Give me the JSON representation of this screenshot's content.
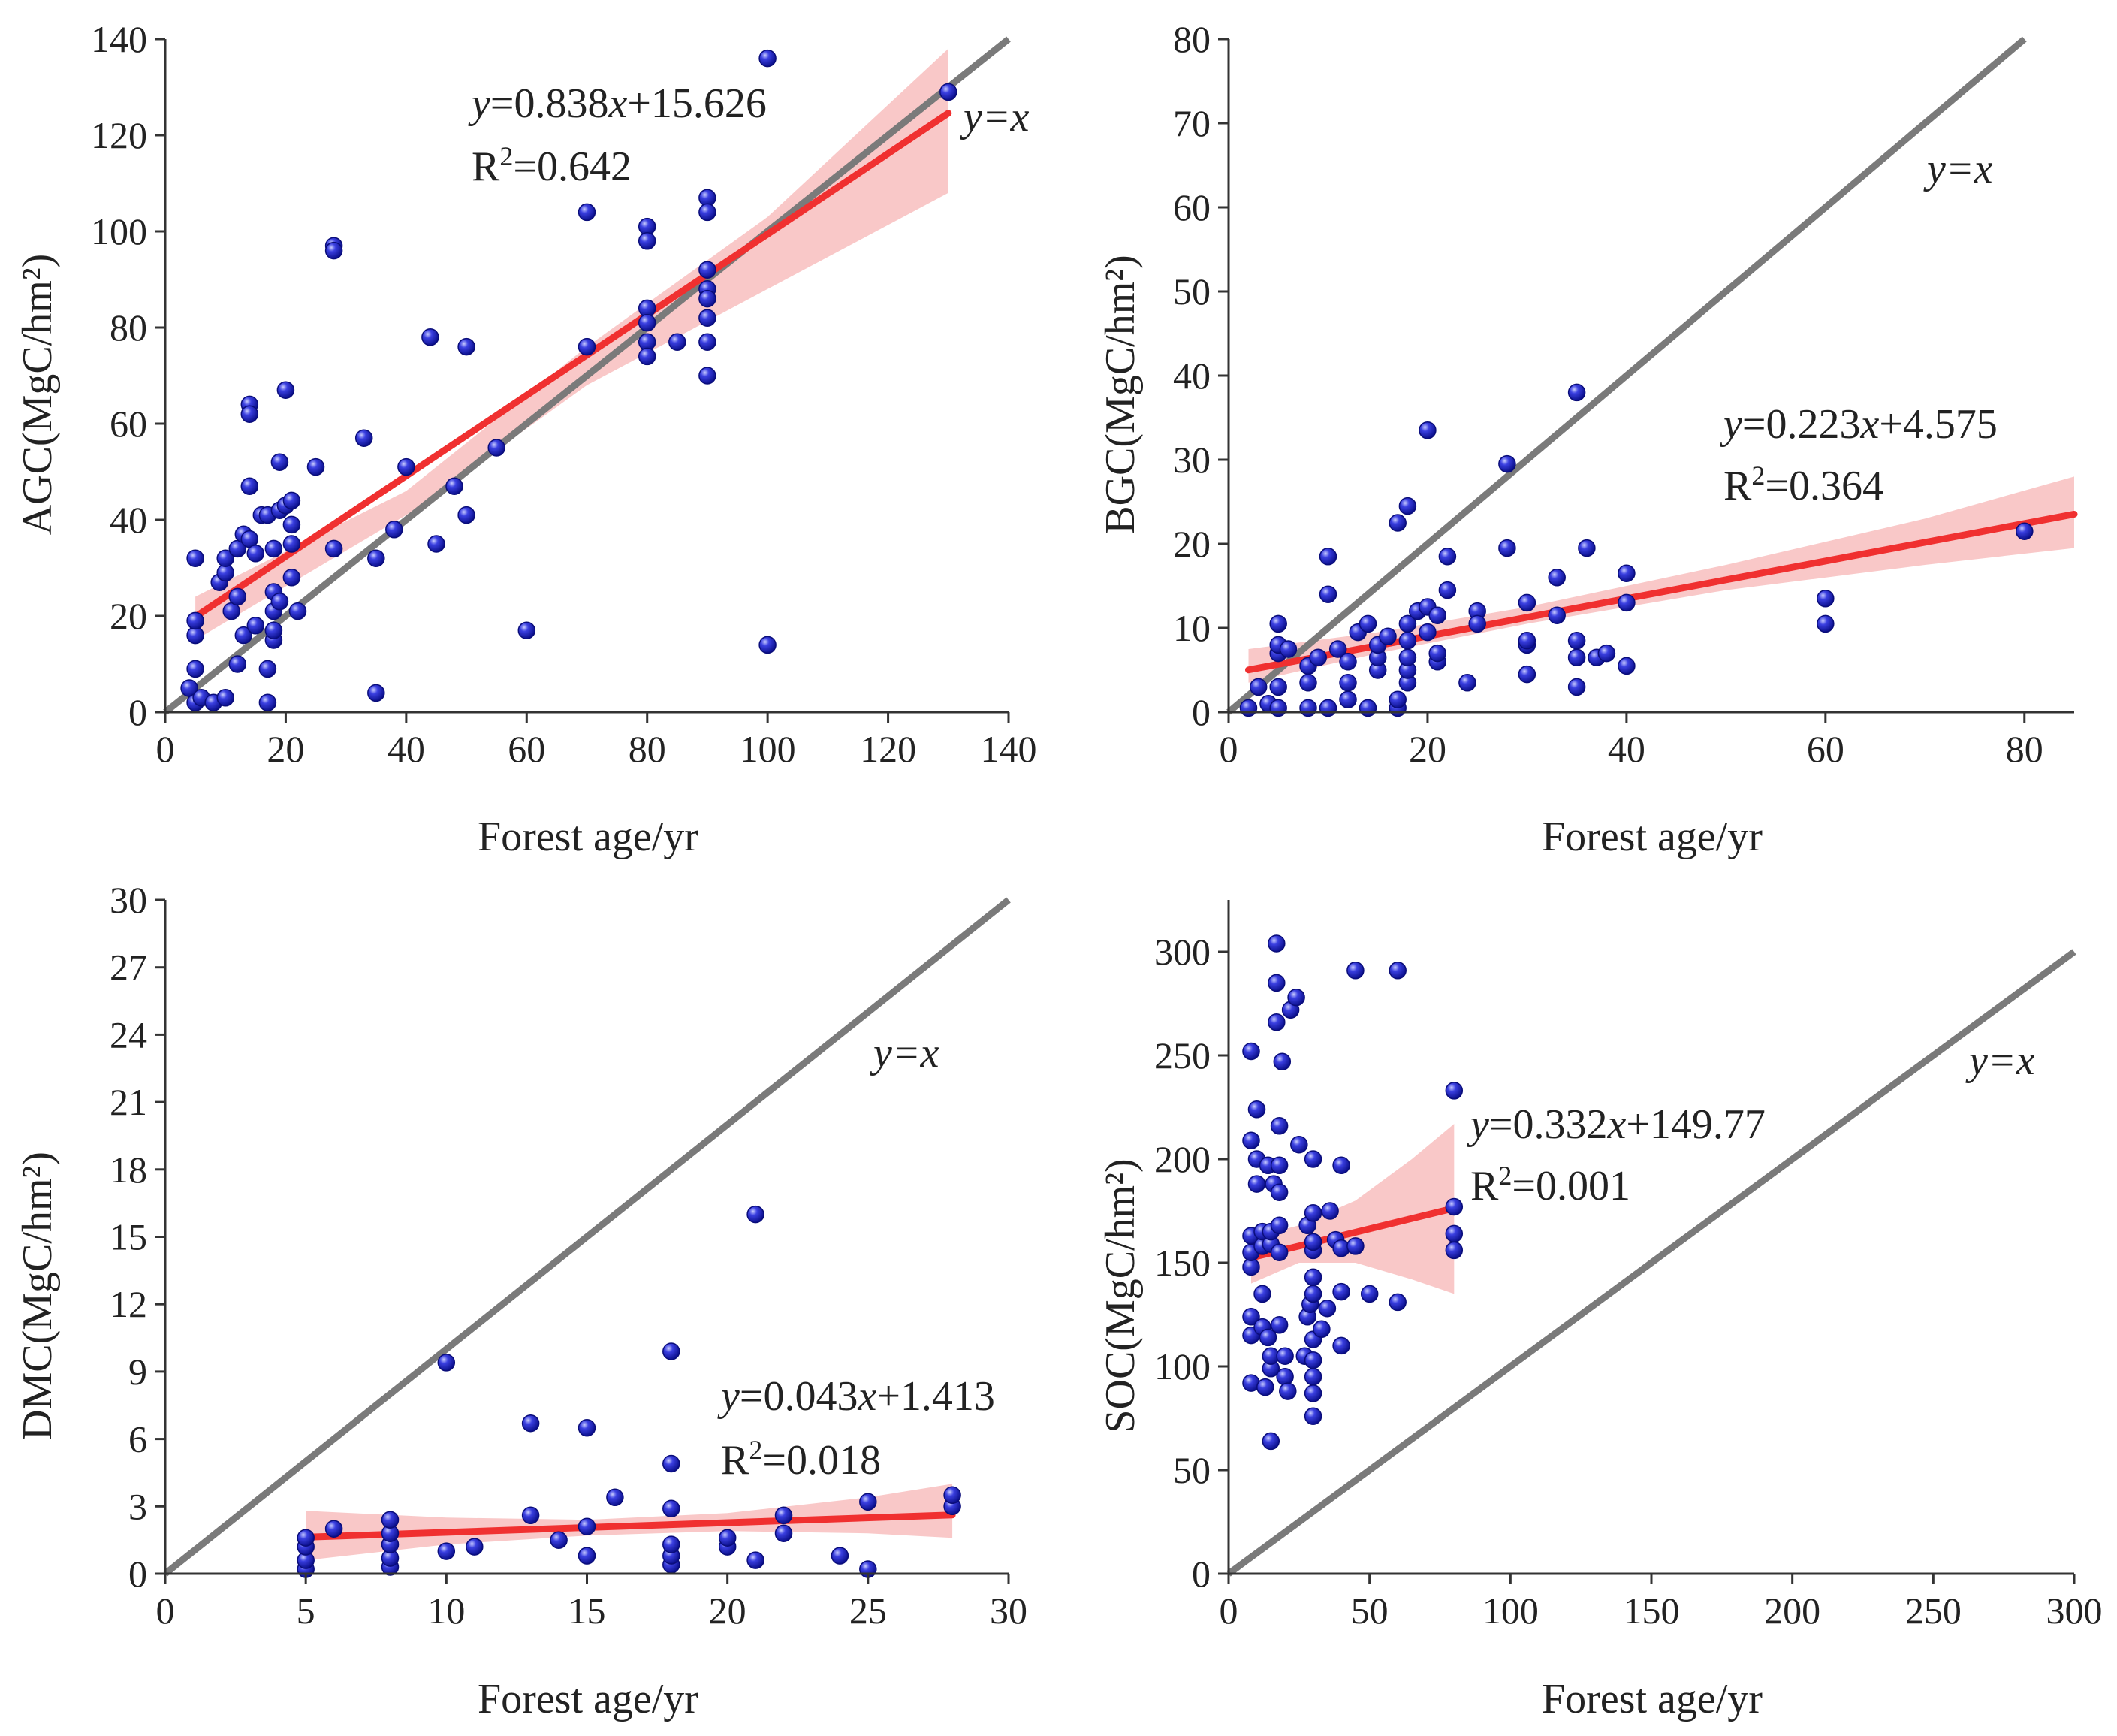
{
  "colors": {
    "point": "#1a1fc4",
    "point_edge": "#0a0d7a",
    "fit_line": "#f03030",
    "band": "#f7b5b5",
    "identity_line": "#7a7a7a",
    "axis": "#333333"
  },
  "chart_data": [
    {
      "id": "agc",
      "type": "scatter",
      "ylabel": "AGC(MgC/hm²)",
      "xlabel": "Forest age/yr",
      "xlim": [
        0,
        140
      ],
      "ylim": [
        0,
        140
      ],
      "xticks": [
        0,
        20,
        40,
        60,
        80,
        100,
        120,
        140
      ],
      "yticks": [
        0,
        20,
        40,
        60,
        80,
        100,
        120,
        140
      ],
      "identity_label": "y=x",
      "identity_range": [
        0,
        140
      ],
      "equation": "y=0.838x+15.626",
      "r2": "R²=0.642",
      "fit": {
        "slope": 0.838,
        "intercept": 15.626,
        "x_range": [
          5,
          130
        ]
      },
      "band": {
        "x": [
          5,
          40,
          70,
          100,
          130
        ],
        "lower": [
          15,
          41,
          68,
          88,
          108
        ],
        "upper": [
          24,
          46,
          76,
          103,
          138
        ]
      },
      "points": [
        [
          4,
          5
        ],
        [
          5,
          2
        ],
        [
          5,
          9
        ],
        [
          5,
          16
        ],
        [
          5,
          19
        ],
        [
          5,
          32
        ],
        [
          6,
          3
        ],
        [
          8,
          2
        ],
        [
          9,
          27
        ],
        [
          10,
          3
        ],
        [
          10,
          29
        ],
        [
          10,
          32
        ],
        [
          11,
          21
        ],
        [
          12,
          10
        ],
        [
          12,
          24
        ],
        [
          12,
          34
        ],
        [
          13,
          37
        ],
        [
          13,
          16
        ],
        [
          14,
          64
        ],
        [
          14,
          62
        ],
        [
          14,
          47
        ],
        [
          14,
          36
        ],
        [
          15,
          18
        ],
        [
          15,
          33
        ],
        [
          16,
          41
        ],
        [
          17,
          41
        ],
        [
          17,
          2
        ],
        [
          17,
          9
        ],
        [
          18,
          15
        ],
        [
          18,
          17
        ],
        [
          18,
          21
        ],
        [
          18,
          25
        ],
        [
          18,
          34
        ],
        [
          19,
          23
        ],
        [
          19,
          52
        ],
        [
          19,
          42
        ],
        [
          20,
          43
        ],
        [
          20,
          67
        ],
        [
          21,
          44
        ],
        [
          21,
          39
        ],
        [
          21,
          35
        ],
        [
          21,
          28
        ],
        [
          22,
          21
        ],
        [
          25,
          51
        ],
        [
          28,
          97
        ],
        [
          28,
          96
        ],
        [
          28,
          34
        ],
        [
          33,
          57
        ],
        [
          35,
          4
        ],
        [
          35,
          32
        ],
        [
          38,
          38
        ],
        [
          40,
          51
        ],
        [
          44,
          78
        ],
        [
          45,
          35
        ],
        [
          48,
          47
        ],
        [
          50,
          76
        ],
        [
          50,
          41
        ],
        [
          55,
          55
        ],
        [
          60,
          17
        ],
        [
          70,
          104
        ],
        [
          70,
          76
        ],
        [
          80,
          101
        ],
        [
          80,
          98
        ],
        [
          80,
          84
        ],
        [
          80,
          81
        ],
        [
          80,
          77
        ],
        [
          80,
          74
        ],
        [
          85,
          77
        ],
        [
          90,
          107
        ],
        [
          90,
          104
        ],
        [
          90,
          92
        ],
        [
          90,
          88
        ],
        [
          90,
          86
        ],
        [
          90,
          82
        ],
        [
          90,
          77
        ],
        [
          90,
          70
        ],
        [
          100,
          136
        ],
        [
          100,
          14
        ],
        [
          130,
          129
        ]
      ]
    },
    {
      "id": "bgc",
      "type": "scatter",
      "ylabel": "BGC(MgC/hm²)",
      "xlabel": "Forest age/yr",
      "xlim": [
        0,
        85
      ],
      "ylim": [
        0,
        80
      ],
      "xticks": [
        0,
        20,
        40,
        60,
        80
      ],
      "yticks": [
        0,
        10,
        20,
        30,
        40,
        50,
        60,
        70,
        80
      ],
      "identity_label": "y=x",
      "identity_range": [
        0,
        80
      ],
      "equation": "y=0.223x+4.575",
      "r2": "R²=0.364",
      "fit": {
        "slope": 0.223,
        "intercept": 4.575,
        "x_range": [
          2,
          85
        ]
      },
      "band": {
        "x": [
          2,
          15,
          30,
          50,
          70,
          85
        ],
        "lower": [
          3.5,
          7,
          10.5,
          14.5,
          17.5,
          19.5
        ],
        "upper": [
          7.5,
          9.5,
          12.5,
          17.5,
          23,
          28
        ]
      },
      "points": [
        [
          2,
          0.5
        ],
        [
          3,
          3
        ],
        [
          4,
          1
        ],
        [
          5,
          0.5
        ],
        [
          5,
          3
        ],
        [
          5,
          7
        ],
        [
          5,
          8
        ],
        [
          5,
          10.5
        ],
        [
          6,
          7.5
        ],
        [
          8,
          0.5
        ],
        [
          8,
          3.5
        ],
        [
          8,
          5.5
        ],
        [
          9,
          6.5
        ],
        [
          10,
          0.5
        ],
        [
          10,
          14
        ],
        [
          10,
          18.5
        ],
        [
          11,
          7.5
        ],
        [
          12,
          1.5
        ],
        [
          12,
          3.5
        ],
        [
          12,
          6
        ],
        [
          13,
          9.5
        ],
        [
          14,
          0.5
        ],
        [
          14,
          10.5
        ],
        [
          15,
          5
        ],
        [
          15,
          6.5
        ],
        [
          15,
          8
        ],
        [
          16,
          9
        ],
        [
          17,
          0.5
        ],
        [
          17,
          1.5
        ],
        [
          17,
          22.5
        ],
        [
          18,
          3.5
        ],
        [
          18,
          5
        ],
        [
          18,
          6.5
        ],
        [
          18,
          8.5
        ],
        [
          18,
          10.5
        ],
        [
          18,
          24.5
        ],
        [
          19,
          12
        ],
        [
          20,
          33.5
        ],
        [
          20,
          9.5
        ],
        [
          20,
          12.5
        ],
        [
          21,
          11.5
        ],
        [
          21,
          6
        ],
        [
          21,
          7
        ],
        [
          22,
          14.5
        ],
        [
          22,
          18.5
        ],
        [
          24,
          3.5
        ],
        [
          25,
          12
        ],
        [
          25,
          10.5
        ],
        [
          28,
          29.5
        ],
        [
          28,
          19.5
        ],
        [
          30,
          4.5
        ],
        [
          30,
          8
        ],
        [
          30,
          8.5
        ],
        [
          30,
          13
        ],
        [
          33,
          11.5
        ],
        [
          33,
          16
        ],
        [
          35,
          3
        ],
        [
          35,
          6.5
        ],
        [
          35,
          8.5
        ],
        [
          35,
          38
        ],
        [
          36,
          19.5
        ],
        [
          37,
          6.5
        ],
        [
          38,
          7
        ],
        [
          40,
          5.5
        ],
        [
          40,
          13
        ],
        [
          40,
          16.5
        ],
        [
          60,
          10.5
        ],
        [
          60,
          13.5
        ],
        [
          80,
          21.5
        ]
      ]
    },
    {
      "id": "dmc",
      "type": "scatter",
      "ylabel": "DMC(MgC/hm²)",
      "xlabel": "Forest age/yr",
      "xlim": [
        0,
        30
      ],
      "ylim": [
        0,
        30
      ],
      "xticks": [
        0,
        5,
        10,
        15,
        20,
        25,
        30
      ],
      "yticks": [
        0,
        3,
        6,
        9,
        12,
        15,
        18,
        21,
        24,
        27,
        30
      ],
      "identity_label": "y=x",
      "identity_range": [
        0,
        30
      ],
      "equation": "y=0.043x+1.413",
      "r2": "R²=0.018",
      "fit": {
        "slope": 0.043,
        "intercept": 1.413,
        "x_range": [
          5,
          28
        ]
      },
      "band": {
        "x": [
          5,
          10,
          15,
          20,
          25,
          28
        ],
        "lower": [
          0.6,
          1.3,
          1.7,
          1.9,
          1.8,
          1.6
        ],
        "upper": [
          2.8,
          2.5,
          2.4,
          2.7,
          3.4,
          4.0
        ]
      },
      "points": [
        [
          5,
          0.2
        ],
        [
          5,
          0.6
        ],
        [
          5,
          1.2
        ],
        [
          5,
          1.6
        ],
        [
          6,
          2.0
        ],
        [
          8,
          0.3
        ],
        [
          8,
          0.7
        ],
        [
          8,
          1.3
        ],
        [
          8,
          1.8
        ],
        [
          8,
          2.4
        ],
        [
          10,
          1.0
        ],
        [
          10,
          9.4
        ],
        [
          11,
          1.2
        ],
        [
          13,
          2.6
        ],
        [
          13,
          6.7
        ],
        [
          14,
          1.5
        ],
        [
          15,
          0.8
        ],
        [
          15,
          2.1
        ],
        [
          15,
          6.5
        ],
        [
          16,
          3.4
        ],
        [
          18,
          0.4
        ],
        [
          18,
          0.8
        ],
        [
          18,
          1.3
        ],
        [
          18,
          2.9
        ],
        [
          18,
          4.9
        ],
        [
          18,
          9.9
        ],
        [
          20,
          1.2
        ],
        [
          20,
          1.6
        ],
        [
          21,
          0.6
        ],
        [
          21,
          16.0
        ],
        [
          22,
          1.8
        ],
        [
          22,
          2.6
        ],
        [
          24,
          0.8
        ],
        [
          25,
          0.2
        ],
        [
          25,
          3.2
        ],
        [
          28,
          3.0
        ],
        [
          28,
          3.5
        ]
      ]
    },
    {
      "id": "soc",
      "type": "scatter",
      "ylabel": "SOC(MgC/hm²)",
      "xlabel": "Forest age/yr",
      "xlim": [
        0,
        300
      ],
      "ylim": [
        0,
        325
      ],
      "xticks": [
        0,
        50,
        100,
        150,
        200,
        250,
        300
      ],
      "yticks": [
        0,
        50,
        100,
        150,
        200,
        250,
        300
      ],
      "identity_label": "y=x",
      "identity_range": [
        0,
        300
      ],
      "equation": "y=0.332x+149.77",
      "r2": "R²=0.001",
      "fit": {
        "slope": 0.332,
        "intercept": 149.77,
        "x_range": [
          8,
          80
        ]
      },
      "band": {
        "x": [
          8,
          25,
          45,
          65,
          80
        ],
        "lower": [
          140,
          150,
          150,
          142,
          135
        ],
        "upper": [
          162,
          168,
          180,
          200,
          217
        ]
      },
      "points": [
        [
          8,
          92
        ],
        [
          8,
          115
        ],
        [
          8,
          124
        ],
        [
          8,
          148
        ],
        [
          8,
          155
        ],
        [
          8,
          163
        ],
        [
          8,
          209
        ],
        [
          8,
          252
        ],
        [
          10,
          224
        ],
        [
          10,
          188
        ],
        [
          10,
          200
        ],
        [
          12,
          119
        ],
        [
          12,
          135
        ],
        [
          12,
          158
        ],
        [
          12,
          165
        ],
        [
          13,
          90
        ],
        [
          14,
          114
        ],
        [
          14,
          197
        ],
        [
          15,
          64
        ],
        [
          15,
          99
        ],
        [
          15,
          105
        ],
        [
          15,
          159
        ],
        [
          15,
          165
        ],
        [
          16,
          188
        ],
        [
          17,
          266
        ],
        [
          17,
          285
        ],
        [
          17,
          304
        ],
        [
          18,
          120
        ],
        [
          18,
          155
        ],
        [
          18,
          168
        ],
        [
          18,
          184
        ],
        [
          18,
          197
        ],
        [
          18,
          216
        ],
        [
          19,
          247
        ],
        [
          20,
          95
        ],
        [
          20,
          105
        ],
        [
          21,
          88
        ],
        [
          22,
          272
        ],
        [
          24,
          278
        ],
        [
          25,
          207
        ],
        [
          27,
          105
        ],
        [
          28,
          124
        ],
        [
          28,
          168
        ],
        [
          29,
          130
        ],
        [
          30,
          76
        ],
        [
          30,
          87
        ],
        [
          30,
          95
        ],
        [
          30,
          103
        ],
        [
          30,
          113
        ],
        [
          30,
          135
        ],
        [
          30,
          143
        ],
        [
          30,
          156
        ],
        [
          30,
          160
        ],
        [
          30,
          174
        ],
        [
          30,
          200
        ],
        [
          33,
          118
        ],
        [
          35,
          128
        ],
        [
          36,
          175
        ],
        [
          38,
          161
        ],
        [
          40,
          110
        ],
        [
          40,
          136
        ],
        [
          40,
          157
        ],
        [
          40,
          197
        ],
        [
          45,
          291
        ],
        [
          45,
          158
        ],
        [
          50,
          135
        ],
        [
          60,
          131
        ],
        [
          60,
          291
        ],
        [
          80,
          156
        ],
        [
          80,
          164
        ],
        [
          80,
          177
        ],
        [
          80,
          233
        ]
      ]
    }
  ]
}
